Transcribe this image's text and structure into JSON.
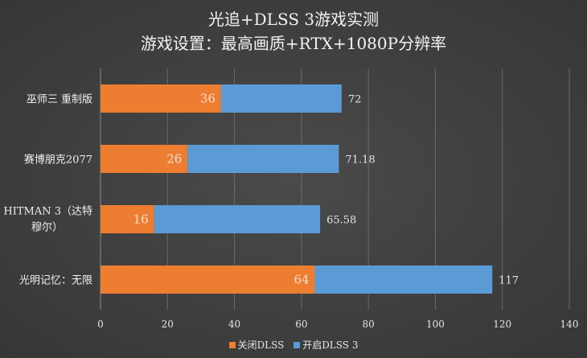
{
  "chart_data": {
    "type": "bar",
    "orientation": "horizontal",
    "title": "光追+DLSS 3游戏实测",
    "subtitle": "游戏设置：最高画质+RTX+1080P分辨率",
    "categories": [
      "巫师三 重制版",
      "赛博朋克2077",
      "HITMAN 3（达特穆尔）",
      "光明记忆：无限"
    ],
    "series": [
      {
        "name": "关闭DLSS",
        "color": "#ed7d31",
        "values": [
          36,
          26,
          16,
          64
        ],
        "labels": [
          "36",
          "26",
          "16",
          "64"
        ]
      },
      {
        "name": "开启DLSS 3",
        "color": "#5b9bd5",
        "values": [
          72,
          71.18,
          65.58,
          117
        ],
        "labels": [
          "72",
          "71.18",
          "65.58",
          "117"
        ]
      }
    ],
    "xlim": [
      0,
      140
    ],
    "xticks": [
      "0",
      "20",
      "40",
      "60",
      "80",
      "100",
      "120",
      "140"
    ],
    "grid": "vertical",
    "legend": "bottom"
  }
}
